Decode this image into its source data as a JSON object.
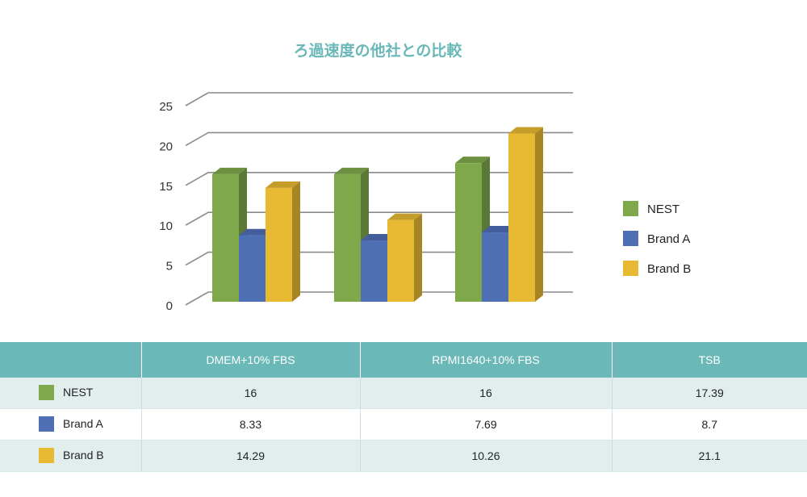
{
  "chart_data": {
    "type": "bar",
    "title": "ろ過速度の他社との比較",
    "categories": [
      "DMEM+10% FBS",
      "RPMI1640+10% FBS",
      "TSB"
    ],
    "series": [
      {
        "name": "NEST",
        "values": [
          16,
          16,
          17.39
        ],
        "color": "#7fa84b"
      },
      {
        "name": "Brand A",
        "values": [
          8.33,
          7.69,
          8.7
        ],
        "color": "#4f6fb5"
      },
      {
        "name": "Brand B",
        "values": [
          14.29,
          10.26,
          21.1
        ],
        "color": "#e8b932"
      }
    ],
    "ylim": [
      0,
      25
    ],
    "yticks": [
      0,
      5,
      10,
      15,
      20,
      25
    ],
    "grid": true,
    "legend": "right",
    "style": "3d"
  },
  "table": {
    "headers": [
      "",
      "DMEM+10% FBS",
      "RPMI1640+10% FBS",
      "TSB"
    ],
    "rows": [
      {
        "label": "NEST",
        "values": [
          "16",
          "16",
          "17.39"
        ]
      },
      {
        "label": "Brand A",
        "values": [
          "8.33",
          "7.69",
          "8.7"
        ]
      },
      {
        "label": "Brand B",
        "values": [
          "14.29",
          "10.26",
          "21.1"
        ]
      }
    ]
  }
}
